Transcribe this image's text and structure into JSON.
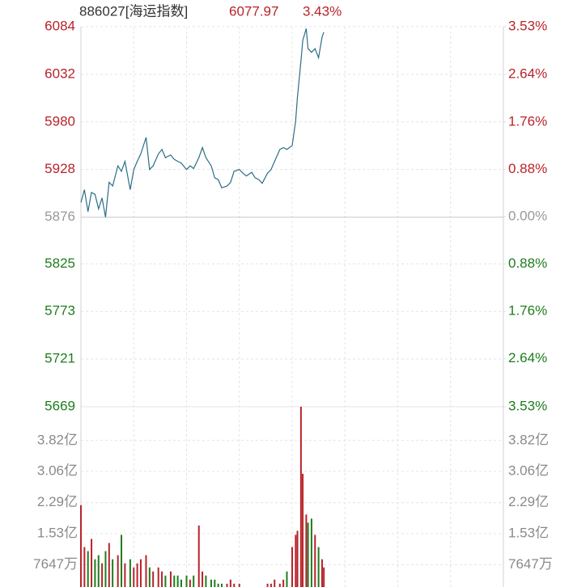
{
  "chart_data": [
    {
      "type": "line",
      "title": "886027[海运指数]",
      "last": 6077.97,
      "change": {
        "value": 3.43,
        "label": "3.43%"
      },
      "color": "#2b6e86",
      "up_color": "#b8232a",
      "down_color": "#1e7d1e",
      "flat_color": "#999999",
      "x": [
        0,
        2,
        4,
        6,
        8,
        10,
        12,
        14,
        16,
        18,
        21,
        23,
        25,
        28,
        30,
        32,
        34,
        37,
        39,
        41,
        44,
        46,
        48,
        51,
        53,
        55,
        57,
        60,
        62,
        64,
        67,
        69,
        71,
        74,
        76,
        78,
        80,
        83,
        85,
        87,
        90,
        92,
        94,
        97,
        99,
        101,
        103,
        106,
        108,
        110,
        113,
        115,
        117,
        120,
        122,
        123,
        125,
        126,
        128,
        129,
        131,
        133,
        135,
        137,
        138
      ],
      "values": [
        5892,
        5906,
        5882,
        5903,
        5901,
        5885,
        5897,
        5876,
        5914,
        5910,
        5932,
        5926,
        5937,
        5906,
        5928,
        5937,
        5945,
        5963,
        5928,
        5932,
        5945,
        5950,
        5941,
        5944,
        5939,
        5937,
        5935,
        5928,
        5932,
        5929,
        5941,
        5952,
        5941,
        5932,
        5919,
        5917,
        5908,
        5910,
        5914,
        5926,
        5928,
        5924,
        5921,
        5925,
        5919,
        5917,
        5913,
        5924,
        5928,
        5937,
        5950,
        5952,
        5950,
        5954,
        5981,
        6007,
        6047,
        6069,
        6082,
        6060,
        6056,
        6060,
        6050,
        6073,
        6078
      ],
      "xlim": [
        0,
        240
      ],
      "xticks": [
        0,
        30,
        60,
        90,
        120,
        150,
        180,
        210,
        240
      ],
      "ylim": [
        5669,
        6084
      ],
      "yticks": [
        6084,
        6032,
        5980,
        5928,
        5876,
        5825,
        5773,
        5721,
        5669
      ],
      "y2lim": [
        -3.53,
        3.53
      ],
      "y2ticks": [
        {
          "value": 3.53,
          "label": "3.53%"
        },
        {
          "value": 2.64,
          "label": "2.64%"
        },
        {
          "value": 1.76,
          "label": "1.76%"
        },
        {
          "value": 0.88,
          "label": "0.88%"
        },
        {
          "value": 0,
          "label": "0.00%"
        },
        {
          "value": -0.88,
          "label": "0.88%"
        },
        {
          "value": -1.76,
          "label": "1.76%"
        },
        {
          "value": -2.64,
          "label": "2.64%"
        },
        {
          "value": -3.53,
          "label": "3.53%"
        }
      ],
      "grid": true
    },
    {
      "type": "bar",
      "x": [
        0,
        2,
        4,
        6,
        8,
        10,
        12,
        14,
        16,
        18,
        21,
        23,
        25,
        28,
        30,
        32,
        34,
        37,
        39,
        41,
        44,
        46,
        48,
        51,
        53,
        55,
        57,
        60,
        62,
        64,
        67,
        69,
        71,
        74,
        76,
        78,
        80,
        83,
        85,
        87,
        90,
        92,
        94,
        97,
        99,
        101,
        103,
        106,
        108,
        110,
        113,
        115,
        117,
        120,
        122,
        123,
        125,
        126,
        128,
        129,
        131,
        133,
        135,
        137,
        138
      ],
      "values": [
        2.23,
        1.2,
        1.1,
        1.4,
        0.9,
        1.0,
        0.8,
        1.1,
        1.3,
        0.9,
        1.0,
        1.5,
        0.8,
        0.9,
        0.7,
        0.8,
        0.9,
        1.0,
        0.7,
        0.6,
        0.7,
        0.6,
        0.5,
        0.6,
        0.5,
        0.5,
        0.4,
        0.5,
        0.4,
        0.5,
        1.73,
        0.6,
        0.5,
        0.4,
        0.4,
        0.3,
        0.3,
        0.3,
        0.4,
        0.3,
        0.3,
        0.2,
        0.2,
        0.2,
        0.2,
        0.2,
        0.2,
        0.3,
        0.3,
        0.4,
        0.3,
        0.4,
        0.6,
        1.2,
        1.5,
        1.6,
        4.65,
        3.0,
        2.0,
        1.8,
        1.9,
        1.5,
        1.2,
        0.9,
        0.7
      ],
      "xlim": [
        0,
        240
      ],
      "ylim": [
        0,
        4.65
      ],
      "yticks": [
        {
          "value": 3.82,
          "label": "3.82亿"
        },
        {
          "value": 3.06,
          "label": "3.06亿"
        },
        {
          "value": 2.29,
          "label": "2.29亿"
        },
        {
          "value": 1.53,
          "label": "1.53亿"
        },
        {
          "value": 0.7647,
          "label": "7647万"
        }
      ],
      "label_color": "#8a8a8a",
      "grid": true
    }
  ]
}
